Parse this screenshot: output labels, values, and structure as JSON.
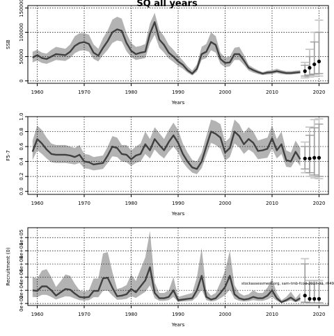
{
  "title": "SQ all years",
  "chart_data": [
    {
      "type": "area",
      "xlabel": "Years",
      "ylabel": "SSB",
      "xlim": [
        1958,
        2022
      ],
      "ylim": [
        -5000,
        155000
      ],
      "x_ticks": [
        1960,
        1970,
        1980,
        1990,
        2000,
        2010,
        2020
      ],
      "y_ticks": [
        0,
        50000,
        100000,
        150000
      ],
      "y_tick_labels": [
        "0",
        "50000",
        "100000",
        "150000"
      ],
      "grid": true,
      "x": [
        1959,
        1960,
        1961,
        1962,
        1963,
        1964,
        1965,
        1966,
        1967,
        1968,
        1969,
        1970,
        1971,
        1972,
        1973,
        1974,
        1975,
        1976,
        1977,
        1978,
        1979,
        1980,
        1981,
        1982,
        1983,
        1984,
        1985,
        1986,
        1987,
        1988,
        1989,
        1990,
        1991,
        1992,
        1993,
        1994,
        1995,
        1996,
        1997,
        1998,
        1999,
        2000,
        2001,
        2002,
        2003,
        2004,
        2005,
        2006,
        2007,
        2008,
        2009,
        2010,
        2011,
        2012,
        2013,
        2014,
        2015,
        2016
      ],
      "series": [
        {
          "role": "estimate",
          "values": [
            48000,
            53000,
            47000,
            45000,
            50000,
            55000,
            54000,
            53000,
            60000,
            72000,
            78000,
            80000,
            76000,
            58000,
            52000,
            68000,
            82000,
            100000,
            106000,
            103000,
            78000,
            62000,
            55000,
            58000,
            60000,
            97000,
            121000,
            85000,
            74000,
            58000,
            50000,
            40000,
            33000,
            22000,
            15000,
            25000,
            55000,
            60000,
            80000,
            74000,
            45000,
            37000,
            38000,
            55000,
            55000,
            42000,
            27000,
            22000,
            18000,
            15000,
            17000,
            18000,
            20000,
            18000,
            16000,
            16000,
            17000,
            18000
          ]
        },
        {
          "role": "upper",
          "values": [
            60000,
            64000,
            58000,
            56000,
            64000,
            70000,
            68000,
            66000,
            75000,
            92000,
            98000,
            98000,
            95000,
            75000,
            66000,
            88000,
            104000,
            126000,
            132000,
            128000,
            98000,
            78000,
            70000,
            72000,
            76000,
            118000,
            140000,
            105000,
            92000,
            74000,
            64000,
            52000,
            42000,
            30000,
            21000,
            34000,
            70000,
            76000,
            100000,
            92000,
            58000,
            48000,
            50000,
            68000,
            70000,
            54000,
            33000,
            27000,
            22000,
            18000,
            21000,
            22000,
            25000,
            22000,
            20000,
            20000,
            21000,
            22000
          ]
        },
        {
          "role": "lower",
          "values": [
            38000,
            42000,
            37000,
            35000,
            39000,
            43000,
            42000,
            41000,
            47000,
            57000,
            62000,
            63000,
            60000,
            45000,
            40000,
            53000,
            64000,
            78000,
            83000,
            81000,
            61000,
            49000,
            43000,
            45000,
            47000,
            77000,
            95000,
            68000,
            58000,
            46000,
            39000,
            31000,
            25000,
            17000,
            11000,
            19000,
            43000,
            47000,
            63000,
            58000,
            35000,
            28000,
            30000,
            43000,
            43000,
            33000,
            21000,
            17000,
            14000,
            12000,
            13000,
            14000,
            16000,
            14000,
            13000,
            13000,
            14000,
            15000
          ]
        }
      ],
      "projection": {
        "points": {
          "x": [
            2017,
            2018,
            2019,
            2020
          ],
          "y": [
            20000,
            27000,
            34000,
            40000
          ]
        },
        "inner_interval": {
          "x": [
            2017,
            2018,
            2019,
            2020
          ],
          "lower": [
            10000,
            12000,
            14000,
            15000
          ],
          "upper": [
            32000,
            50000,
            80000,
            100000
          ]
        },
        "outer_interval": {
          "x": [
            2017,
            2018,
            2019,
            2020
          ],
          "lower": [
            6000,
            8000,
            9000,
            10000
          ],
          "upper": [
            38000,
            65000,
            100000,
            125000
          ]
        }
      }
    },
    {
      "type": "area",
      "xlabel": "Years",
      "ylabel": "F5-7",
      "xlim": [
        1958,
        2022
      ],
      "ylim": [
        -0.04,
        1.0
      ],
      "x_ticks": [
        1960,
        1970,
        1980,
        1990,
        2000,
        2010,
        2020
      ],
      "y_ticks": [
        0.0,
        0.2,
        0.4,
        0.6,
        0.8,
        1.0
      ],
      "y_tick_labels": [
        "0.0",
        "0.2",
        "0.4",
        "0.6",
        "0.8",
        "1.0"
      ],
      "grid": true,
      "x": [
        1959,
        1960,
        1961,
        1962,
        1963,
        1964,
        1965,
        1966,
        1967,
        1968,
        1969,
        1970,
        1971,
        1972,
        1973,
        1974,
        1975,
        1976,
        1977,
        1978,
        1979,
        1980,
        1981,
        1982,
        1983,
        1984,
        1985,
        1986,
        1987,
        1988,
        1989,
        1990,
        1991,
        1992,
        1993,
        1994,
        1995,
        1996,
        1997,
        1998,
        1999,
        2000,
        2001,
        2002,
        2003,
        2004,
        2005,
        2006,
        2007,
        2008,
        2009,
        2010,
        2011,
        2012,
        2013,
        2014,
        2015,
        2016
      ],
      "series": [
        {
          "role": "estimate",
          "values": [
            0.53,
            0.7,
            0.64,
            0.56,
            0.5,
            0.49,
            0.49,
            0.49,
            0.48,
            0.46,
            0.49,
            0.4,
            0.39,
            0.36,
            0.37,
            0.38,
            0.48,
            0.6,
            0.58,
            0.5,
            0.49,
            0.43,
            0.48,
            0.5,
            0.63,
            0.55,
            0.7,
            0.62,
            0.55,
            0.66,
            0.75,
            0.65,
            0.5,
            0.4,
            0.32,
            0.3,
            0.4,
            0.6,
            0.8,
            0.77,
            0.72,
            0.52,
            0.58,
            0.8,
            0.74,
            0.63,
            0.7,
            0.65,
            0.54,
            0.55,
            0.57,
            0.71,
            0.55,
            0.63,
            0.42,
            0.4,
            0.53,
            0.43
          ]
        },
        {
          "role": "upper",
          "values": [
            0.68,
            0.88,
            0.82,
            0.72,
            0.64,
            0.62,
            0.62,
            0.62,
            0.6,
            0.58,
            0.62,
            0.5,
            0.49,
            0.46,
            0.47,
            0.48,
            0.6,
            0.74,
            0.72,
            0.62,
            0.62,
            0.55,
            0.6,
            0.64,
            0.8,
            0.7,
            0.86,
            0.78,
            0.7,
            0.82,
            0.92,
            0.82,
            0.64,
            0.52,
            0.42,
            0.4,
            0.52,
            0.74,
            0.96,
            0.94,
            0.9,
            0.66,
            0.72,
            0.96,
            0.9,
            0.78,
            0.86,
            0.8,
            0.68,
            0.7,
            0.72,
            0.88,
            0.7,
            0.8,
            0.55,
            0.52,
            0.68,
            0.58
          ]
        },
        {
          "role": "lower",
          "values": [
            0.42,
            0.55,
            0.5,
            0.44,
            0.39,
            0.38,
            0.38,
            0.38,
            0.37,
            0.36,
            0.38,
            0.31,
            0.3,
            0.28,
            0.29,
            0.3,
            0.38,
            0.47,
            0.46,
            0.4,
            0.39,
            0.34,
            0.38,
            0.4,
            0.5,
            0.44,
            0.56,
            0.49,
            0.44,
            0.53,
            0.6,
            0.52,
            0.39,
            0.31,
            0.25,
            0.23,
            0.31,
            0.48,
            0.65,
            0.62,
            0.57,
            0.41,
            0.46,
            0.64,
            0.59,
            0.5,
            0.56,
            0.52,
            0.43,
            0.44,
            0.45,
            0.57,
            0.44,
            0.5,
            0.33,
            0.32,
            0.42,
            0.34
          ]
        }
      ],
      "projection": {
        "points": {
          "x": [
            2017,
            2018,
            2019,
            2020
          ],
          "y": [
            0.44,
            0.44,
            0.45,
            0.45
          ]
        },
        "inner_interval": {
          "x": [
            2017,
            2018,
            2019,
            2020
          ],
          "lower": [
            0.3,
            0.25,
            0.22,
            0.2
          ],
          "upper": [
            0.6,
            0.75,
            0.85,
            0.9
          ]
        },
        "outer_interval": {
          "x": [
            2017,
            2018,
            2019,
            2020
          ],
          "lower": [
            0.25,
            0.2,
            0.18,
            0.17
          ],
          "upper": [
            0.66,
            0.86,
            0.96,
            0.97
          ]
        }
      }
    },
    {
      "type": "area",
      "xlabel": "Years",
      "ylabel": "Recruitment (0)",
      "annotation": "stockassessment.org, sam-tmb-fcod-2017-01, r049",
      "xlim": [
        1958,
        2022
      ],
      "ylim": [
        -3000,
        115000
      ],
      "x_ticks": [
        1960,
        1970,
        1980,
        1990,
        2000,
        2010,
        2020
      ],
      "y_ticks": [
        0,
        20000,
        40000,
        60000,
        80000,
        100000
      ],
      "y_tick_labels": [
        "0e+00",
        "2e+04",
        "4e+04",
        "6e+04",
        "8e+04",
        "1e+05"
      ],
      "grid": true,
      "x": [
        1959,
        1960,
        1961,
        1962,
        1963,
        1964,
        1965,
        1966,
        1967,
        1968,
        1969,
        1970,
        1971,
        1972,
        1973,
        1974,
        1975,
        1976,
        1977,
        1978,
        1979,
        1980,
        1981,
        1982,
        1983,
        1984,
        1985,
        1986,
        1987,
        1988,
        1989,
        1990,
        1991,
        1992,
        1993,
        1994,
        1995,
        1996,
        1997,
        1998,
        1999,
        2000,
        2001,
        2002,
        2003,
        2004,
        2005,
        2006,
        2007,
        2008,
        2009,
        2010,
        2011,
        2012,
        2013,
        2014,
        2015,
        2016
      ],
      "series": [
        {
          "role": "estimate",
          "values": [
            20000,
            19000,
            26000,
            26000,
            20000,
            12000,
            17000,
            22000,
            21000,
            15000,
            10000,
            9000,
            10000,
            19000,
            19000,
            38000,
            39000,
            24000,
            11000,
            12000,
            14000,
            22000,
            17000,
            26000,
            35000,
            55000,
            16000,
            8000,
            8000,
            10000,
            20000,
            5000,
            6000,
            7000,
            8000,
            20000,
            42000,
            10000,
            6000,
            8000,
            16000,
            25000,
            42000,
            14000,
            8000,
            6000,
            7000,
            10000,
            8000,
            8000,
            12000,
            20000,
            8000,
            2000,
            5000,
            9000,
            4000,
            8000
          ]
        },
        {
          "role": "upper",
          "values": [
            40000,
            38000,
            50000,
            52000,
            40000,
            25000,
            34000,
            44000,
            42000,
            30000,
            20000,
            18000,
            20000,
            38000,
            38000,
            76000,
            78000,
            48000,
            22000,
            24000,
            28000,
            44000,
            34000,
            52000,
            70000,
            110000,
            32000,
            16000,
            16000,
            20000,
            40000,
            10000,
            12000,
            14000,
            16000,
            40000,
            84000,
            20000,
            12000,
            16000,
            32000,
            50000,
            80000,
            28000,
            16000,
            12000,
            14000,
            20000,
            16000,
            16000,
            24000,
            38000,
            16000,
            5000,
            10000,
            18000,
            8000,
            16000
          ]
        },
        {
          "role": "lower",
          "values": [
            10000,
            9500,
            13000,
            13000,
            10000,
            6000,
            8500,
            11000,
            10500,
            7500,
            5000,
            4500,
            5000,
            9500,
            9500,
            19000,
            19500,
            12000,
            5500,
            6000,
            7000,
            11000,
            8500,
            13000,
            17500,
            27500,
            8000,
            4000,
            4000,
            5000,
            10000,
            2500,
            3000,
            3500,
            4000,
            10000,
            21000,
            5000,
            3000,
            4000,
            8000,
            12500,
            21000,
            7000,
            4000,
            3000,
            3500,
            5000,
            4000,
            4000,
            6000,
            10000,
            4000,
            1000,
            2500,
            4500,
            2000,
            4000
          ]
        }
      ],
      "projection": {
        "points": {
          "x": [
            2017,
            2018,
            2019,
            2020
          ],
          "y": [
            12000,
            7000,
            7000,
            7000
          ]
        },
        "inner_interval": {
          "x": [
            2017,
            2018,
            2019,
            2020
          ],
          "lower": [
            2000,
            1000,
            1000,
            1000
          ],
          "upper": [
            60000,
            30000,
            30000,
            30000
          ]
        },
        "outer_interval": {
          "x": [
            2017,
            2018,
            2019,
            2020
          ],
          "lower": [
            1000,
            500,
            500,
            500
          ],
          "upper": [
            68000,
            35000,
            35000,
            35000
          ]
        }
      }
    }
  ]
}
